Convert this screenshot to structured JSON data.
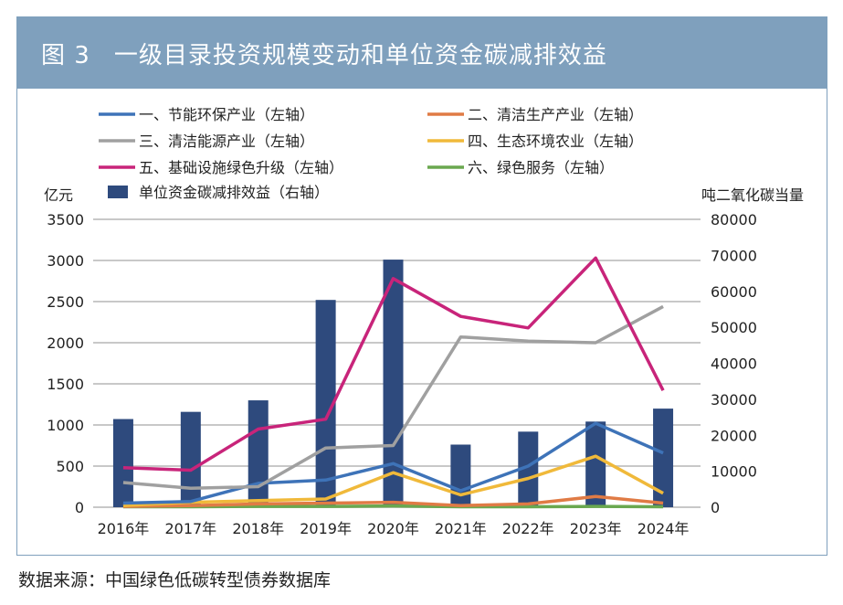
{
  "title": {
    "figure": "图 3",
    "text": "一级目录投资规模变动和单位资金碳减排效益"
  },
  "source": "数据来源：中国绿色低碳转型债券数据库",
  "chart_data": {
    "type": "bar+line",
    "categories": [
      "2016年",
      "2017年",
      "2018年",
      "2019年",
      "2020年",
      "2021年",
      "2022年",
      "2023年",
      "2024年"
    ],
    "ylabel_left": "亿元",
    "ylabel_right": "吨二氧化碳当量",
    "ylim_left": [
      0,
      3500
    ],
    "yticks_left": [
      0,
      500,
      1000,
      1500,
      2000,
      2500,
      3000,
      3500
    ],
    "ylim_right": [
      0,
      80000
    ],
    "yticks_right": [
      0,
      10000,
      20000,
      30000,
      40000,
      50000,
      60000,
      70000,
      80000
    ],
    "grid": true,
    "legend_placement": "top",
    "bar_series": {
      "name": "单位资金碳减排效益（右轴）",
      "color": "#2e4a7d",
      "axis": "right",
      "values": [
        24500,
        26500,
        29700,
        57600,
        68800,
        17400,
        21000,
        23800,
        27400
      ]
    },
    "series": [
      {
        "name": "一、节能环保产业（左轴）",
        "color": "#3e73b8",
        "values": [
          50,
          70,
          290,
          330,
          530,
          200,
          500,
          1020,
          660
        ]
      },
      {
        "name": "二、清洁生产产业（左轴）",
        "color": "#e07b45",
        "values": [
          10,
          20,
          40,
          50,
          60,
          20,
          40,
          130,
          50
        ]
      },
      {
        "name": "三、清洁能源产业（左轴）",
        "color": "#a0a0a0",
        "values": [
          300,
          230,
          250,
          720,
          750,
          2070,
          2020,
          2000,
          2440
        ]
      },
      {
        "name": "四、生态环境农业（左轴）",
        "color": "#f0b93a",
        "values": [
          20,
          60,
          80,
          100,
          420,
          150,
          350,
          620,
          170
        ]
      },
      {
        "name": "五、基础设施绿色升级（左轴）",
        "color": "#c8247a",
        "values": [
          480,
          450,
          950,
          1070,
          2780,
          2320,
          2180,
          3030,
          1420
        ]
      },
      {
        "name": "六、绿色服务（左轴）",
        "color": "#6aa84f",
        "values": [
          5,
          5,
          10,
          10,
          15,
          5,
          5,
          10,
          5
        ]
      }
    ]
  }
}
